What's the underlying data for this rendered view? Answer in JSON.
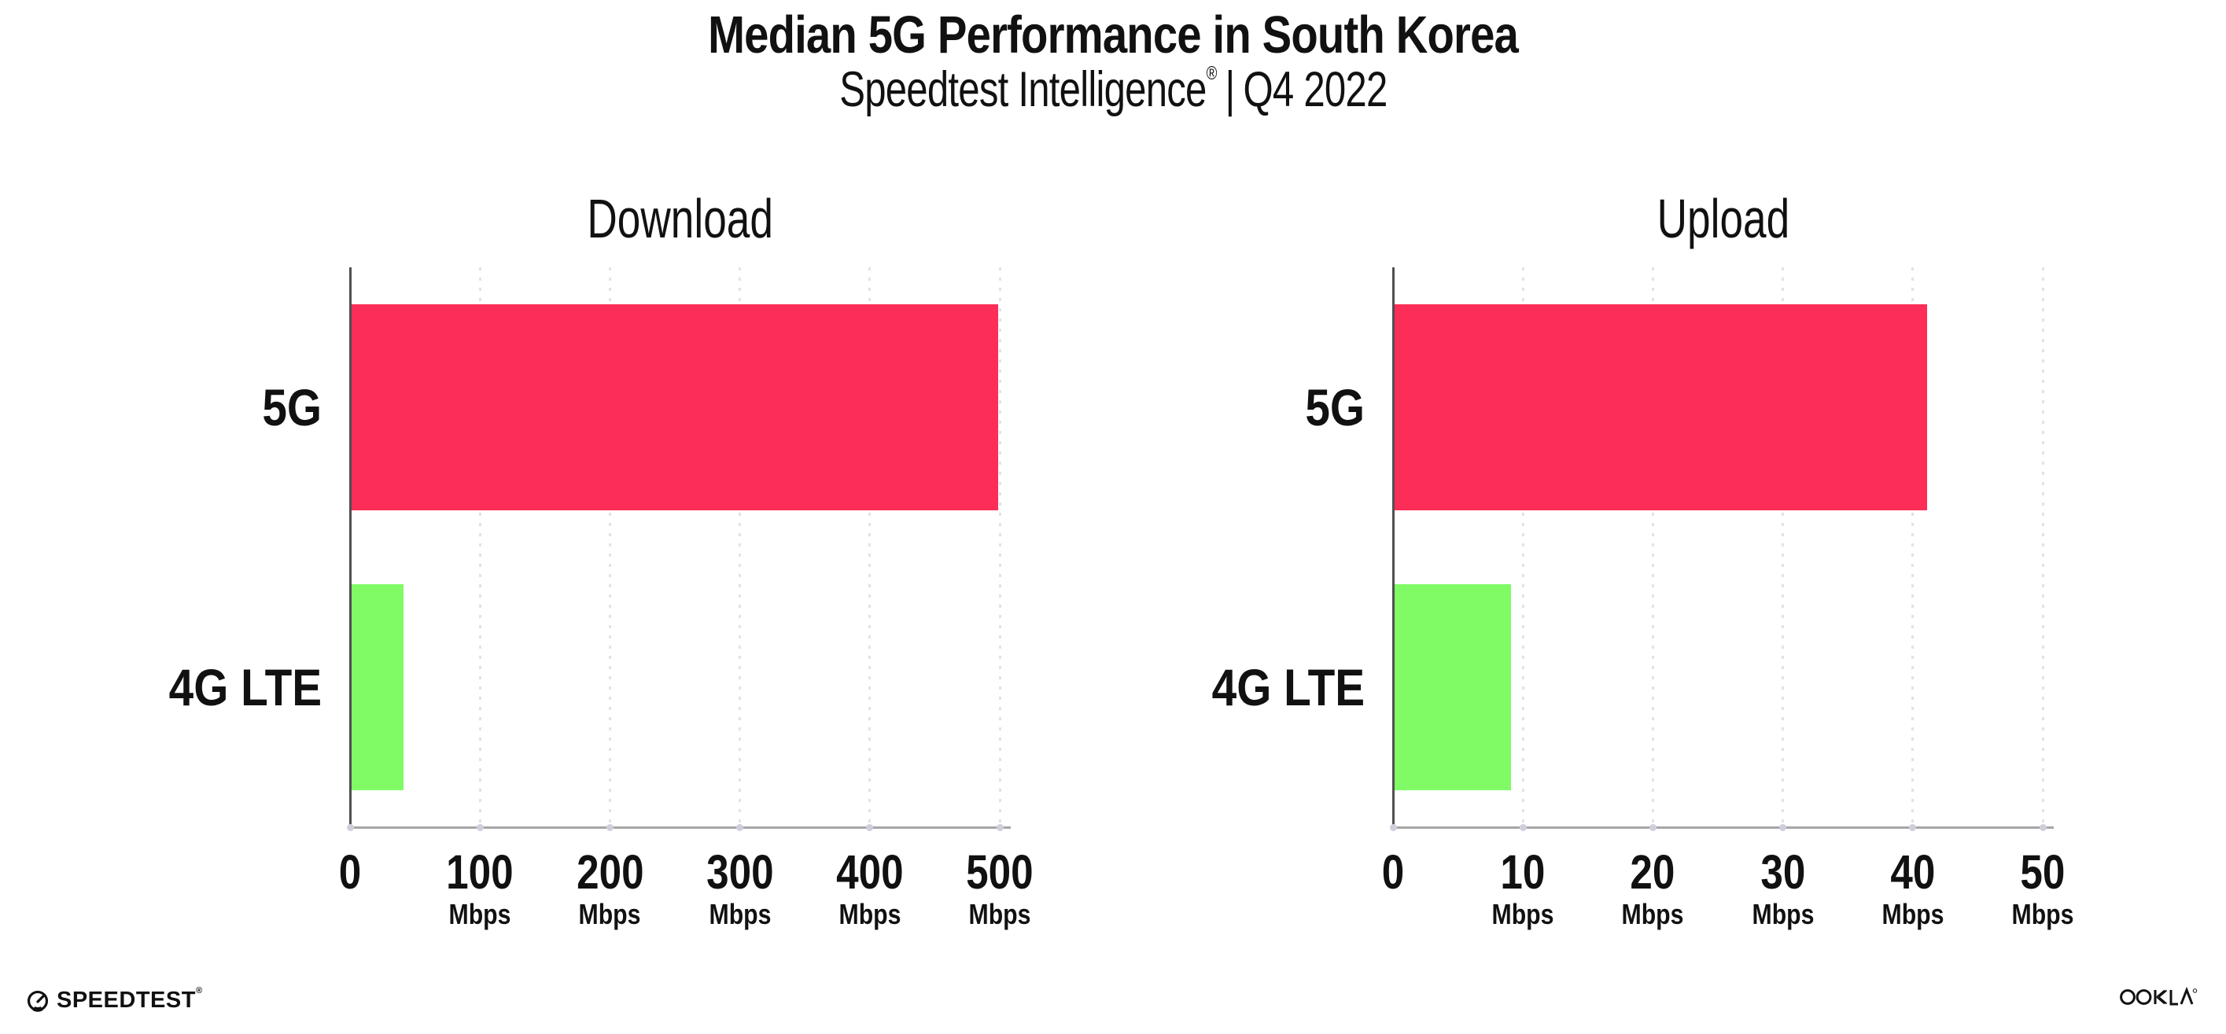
{
  "header": {
    "title": "Median 5G Performance in South Korea",
    "subtitle_brand": "Speedtest Intelligence",
    "subtitle_reg_mark": "®",
    "subtitle_separator": "|",
    "subtitle_period": "Q4 2022"
  },
  "colors": {
    "bar_5g": "#fc2d56",
    "bar_4g_lte": "#80fb66",
    "axis_baseline": "#a6a6a6",
    "y_axis_line": "#4f4f4f",
    "gridline": "#e2e2ec",
    "text": "#111111"
  },
  "footer": {
    "speedtest_logo_text": "SPEEDTEST",
    "speedtest_reg_mark": "®",
    "ookla_logo_text": "OOKLA",
    "ookla_reg_mark": "®"
  },
  "chart_data": [
    {
      "type": "bar",
      "orientation": "horizontal",
      "title": "Download",
      "categories": [
        "5G",
        "4G LTE"
      ],
      "values": [
        498,
        40
      ],
      "value_unit": "Mbps",
      "xlim": [
        0,
        500
      ],
      "xticks": [
        0,
        100,
        200,
        300,
        400,
        500
      ],
      "xtick_unit_label": "Mbps",
      "xtick_unit_on_zero": false,
      "bar_colors": [
        "#fc2d56",
        "#80fb66"
      ],
      "grid": "dotted-vertical",
      "legend": "none"
    },
    {
      "type": "bar",
      "orientation": "horizontal",
      "title": "Upload",
      "categories": [
        "5G",
        "4G LTE"
      ],
      "values": [
        41,
        9
      ],
      "value_unit": "Mbps",
      "xlim": [
        0,
        50
      ],
      "xticks": [
        0,
        10,
        20,
        30,
        40,
        50
      ],
      "xtick_unit_label": "Mbps",
      "xtick_unit_on_zero": false,
      "bar_colors": [
        "#fc2d56",
        "#80fb66"
      ],
      "grid": "dotted-vertical",
      "legend": "none"
    }
  ]
}
